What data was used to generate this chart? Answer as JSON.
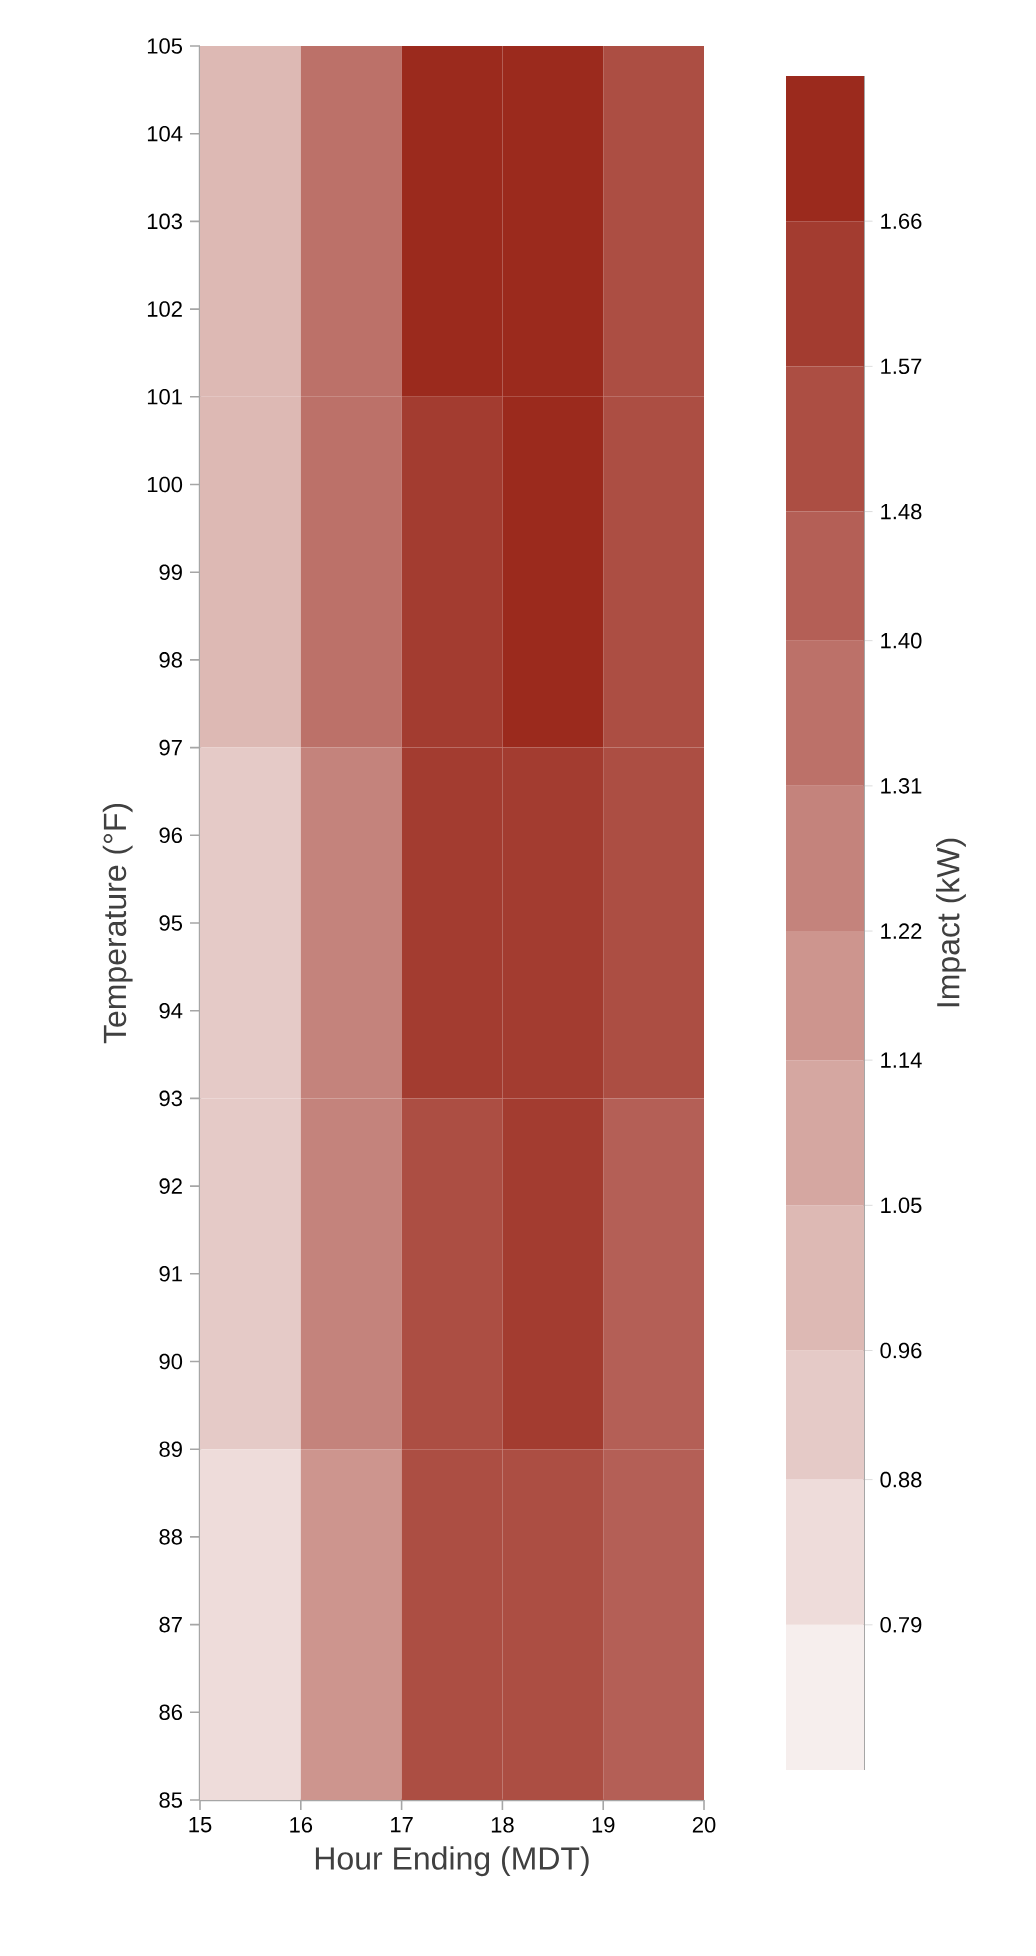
{
  "chart_data": {
    "type": "heatmap",
    "xlabel": "Hour Ending (MDT)",
    "ylabel": "Temperature (°F)",
    "clabel": "Impact (kW)",
    "x": [
      15.5,
      16.5,
      17.5,
      18.5,
      19.5
    ],
    "y": [
      103,
      99,
      95,
      91,
      87
    ],
    "cells": [
      [
        1.0,
        1.35,
        1.7,
        1.7,
        1.55
      ],
      [
        0.97,
        1.32,
        1.62,
        1.66,
        1.52
      ],
      [
        0.93,
        1.28,
        1.6,
        1.62,
        1.5
      ],
      [
        0.88,
        1.24,
        1.55,
        1.58,
        1.47
      ],
      [
        0.82,
        1.2,
        1.5,
        1.54,
        1.42
      ]
    ],
    "xlim": [
      15,
      20
    ],
    "ylim": [
      85,
      105
    ],
    "xticks": [
      15,
      16,
      17,
      18,
      19,
      20
    ],
    "yticks": [
      85,
      86,
      87,
      88,
      89,
      90,
      91,
      92,
      93,
      94,
      95,
      96,
      97,
      98,
      99,
      100,
      101,
      102,
      103,
      104,
      105
    ],
    "clim": [
      0.7,
      1.75
    ],
    "cticks": [
      0.79,
      0.88,
      0.96,
      1.05,
      1.14,
      1.22,
      1.31,
      {
        "value": 1.4,
        "label": "1.40"
      },
      1.48,
      1.57,
      1.66
    ]
  }
}
